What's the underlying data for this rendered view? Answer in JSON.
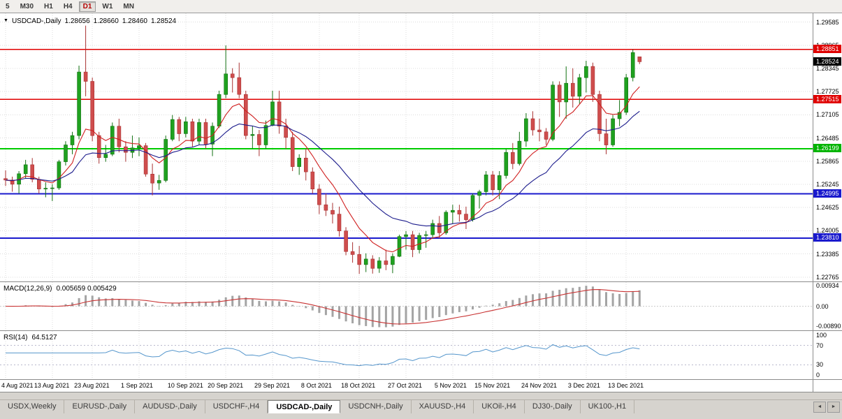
{
  "icons": {
    "dropdown": "▼",
    "tab_scroll_left": "◄",
    "tab_scroll_right": "►"
  },
  "toolbar": {
    "periods": [
      {
        "label": "5",
        "active": false
      },
      {
        "label": "M30",
        "active": false
      },
      {
        "label": "H1",
        "active": false
      },
      {
        "label": "H4",
        "active": false
      },
      {
        "label": "D1",
        "active": true
      },
      {
        "label": "W1",
        "active": false
      },
      {
        "label": "MN",
        "active": false
      }
    ]
  },
  "title": {
    "symbol": "USDCAD-,Daily",
    "open": "1.28656",
    "high": "1.28660",
    "low": "1.28460",
    "close": "1.28524"
  },
  "price_axis": {
    "labels": [
      "1.29585",
      "1.28965",
      "1.28345",
      "1.27725",
      "1.27105",
      "1.26485",
      "1.25865",
      "1.25245",
      "1.24625",
      "1.24005",
      "1.23385",
      "1.22765"
    ],
    "badges": [
      {
        "value": 1.28851,
        "text": "1.28851",
        "color": "#e00000"
      },
      {
        "value": 1.28524,
        "text": "1.28524",
        "color": "#000000"
      },
      {
        "value": 1.27515,
        "text": "1.27515",
        "color": "#e00000"
      },
      {
        "value": 1.26199,
        "text": "1.26199",
        "color": "#00b400"
      },
      {
        "value": 1.24995,
        "text": "1.24995",
        "color": "#1a1acd"
      },
      {
        "value": 1.2381,
        "text": "1.23810",
        "color": "#1a1acd"
      }
    ]
  },
  "macd": {
    "name": "MACD(12,26,9)",
    "values": "0.005659 0.005429",
    "params": {
      "fast": 12,
      "slow": 26,
      "signal": 9
    },
    "range": [
      -0.0105,
      0.0105
    ],
    "axis_labels": [
      {
        "text": "0.00934",
        "value": 0.00934
      },
      {
        "text": "0.00",
        "value": 0
      },
      {
        "text": "-0.00890",
        "value": -0.0089
      }
    ],
    "histogram_color": "#a4a4a4",
    "signal_color": "#c83232"
  },
  "rsi": {
    "name": "RSI(14)",
    "value": "64.5127",
    "period": 14,
    "levels": [
      70,
      30
    ],
    "axis_labels": [
      {
        "text": "100",
        "value": 100
      },
      {
        "text": "70",
        "value": 70
      },
      {
        "text": "30",
        "value": 30
      },
      {
        "text": "0",
        "value": 0
      }
    ],
    "line_color": "#5596cc"
  },
  "tabs": {
    "items": [
      {
        "label": "USDX,Weekly",
        "active": false
      },
      {
        "label": "EURUSD-,Daily",
        "active": false
      },
      {
        "label": "AUDUSD-,Daily",
        "active": false
      },
      {
        "label": "USDCHF-,H4",
        "active": false
      },
      {
        "label": "USDCAD-,Daily",
        "active": true
      },
      {
        "label": "USDCNH-,Daily",
        "active": false
      },
      {
        "label": "XAUUSD-,H4",
        "active": false
      },
      {
        "label": "UKOil-,H4",
        "active": false
      },
      {
        "label": "DJ30-,Daily",
        "active": false
      },
      {
        "label": "UK100-,H1",
        "active": false
      }
    ]
  },
  "chart_data": {
    "type": "candlestick",
    "title": "USDCAD-,Daily",
    "timeframe": "Daily",
    "price_range": [
      1.2265,
      1.2982
    ],
    "up_color": "#1fa11f",
    "up_border": "#127112",
    "down_color": "#cf4d4d",
    "down_border": "#a93232",
    "moving_averages": [
      {
        "period": 8,
        "color": "#d02020"
      },
      {
        "period": 20,
        "color": "#1c1c8c"
      }
    ],
    "hlines": [
      {
        "value": 1.28851,
        "color": "#e00000",
        "width": 1.6,
        "name": "resistance-line-upper"
      },
      {
        "value": 1.27515,
        "color": "#e00000",
        "width": 1.6,
        "name": "resistance-line-lower"
      },
      {
        "value": 1.26199,
        "color": "#00cc00",
        "width": 2,
        "name": "support-line-green"
      },
      {
        "value": 1.24995,
        "color": "#1a1acd",
        "width": 2,
        "name": "support-line-blue-upper"
      },
      {
        "value": 1.2381,
        "color": "#1a1acd",
        "width": 2,
        "name": "support-line-blue-lower"
      }
    ],
    "x_ticks": [
      {
        "index": 0,
        "label": "4 Aug 2021"
      },
      {
        "index": 7,
        "label": "13 Aug 2021"
      },
      {
        "index": 13,
        "label": "23 Aug 2021"
      },
      {
        "index": 20,
        "label": "1 Sep 2021"
      },
      {
        "index": 27,
        "label": "10 Sep 2021"
      },
      {
        "index": 33,
        "label": "20 Sep 2021"
      },
      {
        "index": 40,
        "label": "29 Sep 2021"
      },
      {
        "index": 47,
        "label": "8 Oct 2021"
      },
      {
        "index": 53,
        "label": "18 Oct 2021"
      },
      {
        "index": 60,
        "label": "27 Oct 2021"
      },
      {
        "index": 67,
        "label": "5 Nov 2021"
      },
      {
        "index": 73,
        "label": "15 Nov 2021"
      },
      {
        "index": 80,
        "label": "24 Nov 2021"
      },
      {
        "index": 87,
        "label": "3 Dec 2021"
      },
      {
        "index": 93,
        "label": "13 Dec 2021"
      }
    ],
    "candles": [
      [
        1.254,
        1.2562,
        1.252,
        1.2536
      ],
      [
        1.2536,
        1.2545,
        1.2505,
        1.2525
      ],
      [
        1.2525,
        1.256,
        1.25,
        1.2553
      ],
      [
        1.2553,
        1.259,
        1.254,
        1.2577
      ],
      [
        1.2577,
        1.2595,
        1.253,
        1.2538
      ],
      [
        1.2538,
        1.2545,
        1.25,
        1.2512
      ],
      [
        1.2512,
        1.253,
        1.249,
        1.2514
      ],
      [
        1.2514,
        1.2525,
        1.248,
        1.2515
      ],
      [
        1.2515,
        1.259,
        1.251,
        1.2585
      ],
      [
        1.2585,
        1.264,
        1.2575,
        1.263
      ],
      [
        1.263,
        1.2665,
        1.2605,
        1.2655
      ],
      [
        1.2655,
        1.2842,
        1.2645,
        1.2825
      ],
      [
        1.2825,
        1.2949,
        1.276,
        1.28
      ],
      [
        1.28,
        1.281,
        1.264,
        1.2655
      ],
      [
        1.2655,
        1.2665,
        1.258,
        1.2596
      ],
      [
        1.2596,
        1.263,
        1.2585,
        1.2605
      ],
      [
        1.2605,
        1.269,
        1.26,
        1.268
      ],
      [
        1.268,
        1.27,
        1.261,
        1.2625
      ],
      [
        1.2625,
        1.264,
        1.2585,
        1.261
      ],
      [
        1.261,
        1.2655,
        1.2595,
        1.2622
      ],
      [
        1.2622,
        1.265,
        1.26,
        1.2628
      ],
      [
        1.2628,
        1.2635,
        1.2545,
        1.2552
      ],
      [
        1.2552,
        1.258,
        1.2495,
        1.2528
      ],
      [
        1.2528,
        1.255,
        1.251,
        1.2535
      ],
      [
        1.2535,
        1.2655,
        1.253,
        1.2645
      ],
      [
        1.2645,
        1.271,
        1.264,
        1.2698
      ],
      [
        1.2698,
        1.2705,
        1.264,
        1.266
      ],
      [
        1.266,
        1.2705,
        1.265,
        1.2692
      ],
      [
        1.2692,
        1.27,
        1.2625,
        1.264
      ],
      [
        1.264,
        1.27,
        1.263,
        1.269
      ],
      [
        1.269,
        1.27,
        1.262,
        1.2632
      ],
      [
        1.2632,
        1.269,
        1.26,
        1.268
      ],
      [
        1.268,
        1.2775,
        1.2675,
        1.2765
      ],
      [
        1.2765,
        1.2896,
        1.2755,
        1.282
      ],
      [
        1.282,
        1.2835,
        1.277,
        1.281
      ],
      [
        1.281,
        1.285,
        1.2755,
        1.2765
      ],
      [
        1.2765,
        1.2775,
        1.2645,
        1.2655
      ],
      [
        1.2655,
        1.268,
        1.262,
        1.2658
      ],
      [
        1.2658,
        1.267,
        1.26,
        1.263
      ],
      [
        1.263,
        1.2695,
        1.262,
        1.2682
      ],
      [
        1.2682,
        1.2775,
        1.268,
        1.2745
      ],
      [
        1.2745,
        1.2775,
        1.266,
        1.268
      ],
      [
        1.268,
        1.27,
        1.262,
        1.265
      ],
      [
        1.265,
        1.2665,
        1.256,
        1.2572
      ],
      [
        1.2572,
        1.2605,
        1.255,
        1.2595
      ],
      [
        1.2595,
        1.262,
        1.2535,
        1.2558
      ],
      [
        1.2558,
        1.257,
        1.25,
        1.2512
      ],
      [
        1.2512,
        1.2525,
        1.2445,
        1.247
      ],
      [
        1.247,
        1.25,
        1.244,
        1.2455
      ],
      [
        1.2455,
        1.2475,
        1.242,
        1.2445
      ],
      [
        1.2445,
        1.2465,
        1.2385,
        1.24
      ],
      [
        1.24,
        1.241,
        1.2335,
        1.2345
      ],
      [
        1.2345,
        1.237,
        1.2315,
        1.2337
      ],
      [
        1.2337,
        1.236,
        1.2285,
        1.231
      ],
      [
        1.231,
        1.234,
        1.229,
        1.2325
      ],
      [
        1.2325,
        1.2335,
        1.2286,
        1.23
      ],
      [
        1.23,
        1.233,
        1.2288,
        1.232
      ],
      [
        1.232,
        1.235,
        1.2295,
        1.231
      ],
      [
        1.231,
        1.234,
        1.2287,
        1.2332
      ],
      [
        1.2332,
        1.239,
        1.233,
        1.2385
      ],
      [
        1.2385,
        1.24,
        1.235,
        1.239
      ],
      [
        1.239,
        1.24,
        1.233,
        1.235
      ],
      [
        1.235,
        1.2395,
        1.234,
        1.2388
      ],
      [
        1.2388,
        1.24,
        1.2355,
        1.239
      ],
      [
        1.239,
        1.243,
        1.238,
        1.242
      ],
      [
        1.242,
        1.244,
        1.238,
        1.2395
      ],
      [
        1.2395,
        1.2455,
        1.239,
        1.245
      ],
      [
        1.245,
        1.247,
        1.242,
        1.2455
      ],
      [
        1.2455,
        1.247,
        1.2425,
        1.2445
      ],
      [
        1.2445,
        1.2465,
        1.2405,
        1.243
      ],
      [
        1.243,
        1.25,
        1.2425,
        1.2495
      ],
      [
        1.2495,
        1.251,
        1.246,
        1.2505
      ],
      [
        1.2505,
        1.256,
        1.2495,
        1.255
      ],
      [
        1.255,
        1.256,
        1.2495,
        1.251
      ],
      [
        1.251,
        1.256,
        1.2485,
        1.2548
      ],
      [
        1.2548,
        1.262,
        1.254,
        1.261
      ],
      [
        1.261,
        1.2635,
        1.2565,
        1.258
      ],
      [
        1.258,
        1.2665,
        1.2575,
        1.264
      ],
      [
        1.264,
        1.2715,
        1.2625,
        1.27
      ],
      [
        1.27,
        1.272,
        1.2655,
        1.267
      ],
      [
        1.267,
        1.27,
        1.264,
        1.2665
      ],
      [
        1.2665,
        1.2675,
        1.263,
        1.2645
      ],
      [
        1.2645,
        1.28,
        1.264,
        1.279
      ],
      [
        1.279,
        1.28,
        1.2705,
        1.2745
      ],
      [
        1.2745,
        1.284,
        1.27,
        1.2795
      ],
      [
        1.2795,
        1.2835,
        1.273,
        1.276
      ],
      [
        1.276,
        1.282,
        1.274,
        1.281
      ],
      [
        1.281,
        1.2855,
        1.277,
        1.284
      ],
      [
        1.284,
        1.285,
        1.2745,
        1.2765
      ],
      [
        1.2765,
        1.2775,
        1.264,
        1.266
      ],
      [
        1.266,
        1.27,
        1.2605,
        1.263
      ],
      [
        1.263,
        1.271,
        1.2625,
        1.27
      ],
      [
        1.27,
        1.275,
        1.268,
        1.2717
      ],
      [
        1.2717,
        1.282,
        1.271,
        1.281
      ],
      [
        1.281,
        1.2885,
        1.28,
        1.2877
      ],
      [
        1.28656,
        1.2866,
        1.2846,
        1.28524
      ]
    ]
  }
}
